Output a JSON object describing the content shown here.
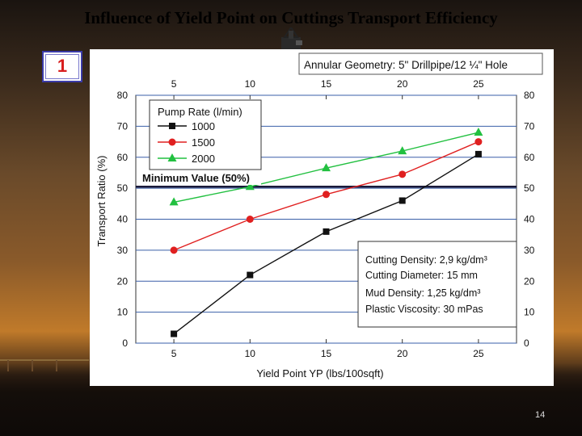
{
  "slide": {
    "title": "Influence of Yield Point on Cuttings Transport Efficiency",
    "badge": "1",
    "page_number": "14"
  },
  "chart_data": {
    "type": "line",
    "geometry_label": "Annular Geometry: 5\" Drillpipe/12 ¼\" Hole",
    "xlabel": "Yield Point YP (lbs/100sqft)",
    "ylabel": "Transport Ratio (%)",
    "x": [
      5,
      10,
      15,
      20,
      25
    ],
    "xlim": [
      2.5,
      27.5
    ],
    "ylim": [
      0,
      80
    ],
    "yticks": [
      0,
      10,
      20,
      30,
      40,
      50,
      60,
      70,
      80
    ],
    "grid": true,
    "legend_title": "Pump Rate (l/min)",
    "legend_position": "top-left",
    "series": [
      {
        "name": "1000",
        "color": "#111111",
        "marker": "square",
        "values": [
          3,
          22,
          36,
          46,
          61
        ]
      },
      {
        "name": "1500",
        "color": "#e02020",
        "marker": "circle",
        "values": [
          30,
          40,
          48,
          54.5,
          65
        ]
      },
      {
        "name": "2000",
        "color": "#22c040",
        "marker": "triangle",
        "values": [
          45.5,
          50.5,
          56.5,
          62,
          68
        ]
      }
    ],
    "reference_line": {
      "value": 50.5,
      "label": "Minimum Value (50%)"
    },
    "info_box": [
      "Cutting Density: 2,9 kg/dm³",
      "Cutting Diameter: 15 mm",
      "Mud Density: 1,25 kg/dm³",
      "Plastic Viscosity: 30 mPas"
    ]
  }
}
